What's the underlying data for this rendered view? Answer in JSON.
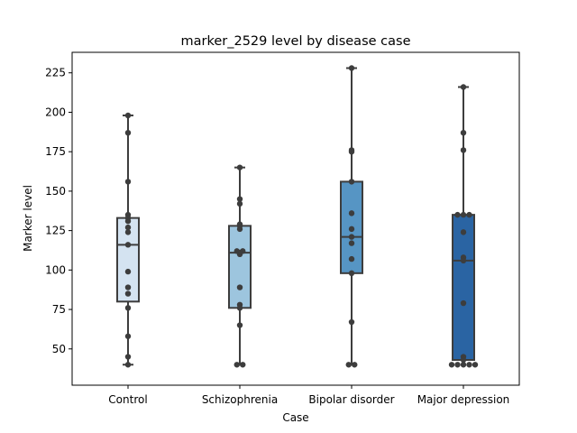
{
  "chart_data": {
    "type": "box",
    "title": "marker_2529 level by disease case",
    "xlabel": "Case",
    "ylabel": "Marker level",
    "ylim": [
      27,
      238
    ],
    "yticks": [
      50,
      75,
      100,
      125,
      150,
      175,
      200,
      225
    ],
    "grid": false,
    "legend": "none",
    "categories": [
      "Control",
      "Schizophrenia",
      "Bipolar disorder",
      "Major depression"
    ],
    "colors": [
      "#d4e3f1",
      "#9dc5de",
      "#5695c4",
      "#2a64a3"
    ],
    "point_color": "#3d3d3d",
    "boxes": [
      {
        "whisker_low": 40,
        "q1": 80,
        "median": 116,
        "q3": 133,
        "whisker_high": 198
      },
      {
        "whisker_low": 40,
        "q1": 76,
        "median": 111,
        "q3": 128,
        "whisker_high": 165
      },
      {
        "whisker_low": 40,
        "q1": 98,
        "median": 121,
        "q3": 156,
        "whisker_high": 228
      },
      {
        "whisker_low": 43,
        "q1": 43,
        "median": 106,
        "q3": 135,
        "whisker_high": 216
      }
    ],
    "points": [
      [
        198,
        187,
        156,
        135,
        133,
        131,
        127,
        124,
        116,
        99,
        89,
        85,
        76,
        58,
        45,
        40
      ],
      [
        165,
        145,
        142,
        129,
        128,
        126,
        112,
        112,
        111,
        110,
        89,
        78,
        76,
        65,
        40,
        40
      ],
      [
        228,
        176,
        175,
        156,
        136,
        126,
        121,
        117,
        107,
        98,
        67,
        40,
        40
      ],
      [
        216,
        187,
        176,
        135,
        135,
        135,
        124,
        108,
        106,
        79,
        45,
        43,
        40,
        40,
        40,
        40,
        40
      ]
    ]
  }
}
